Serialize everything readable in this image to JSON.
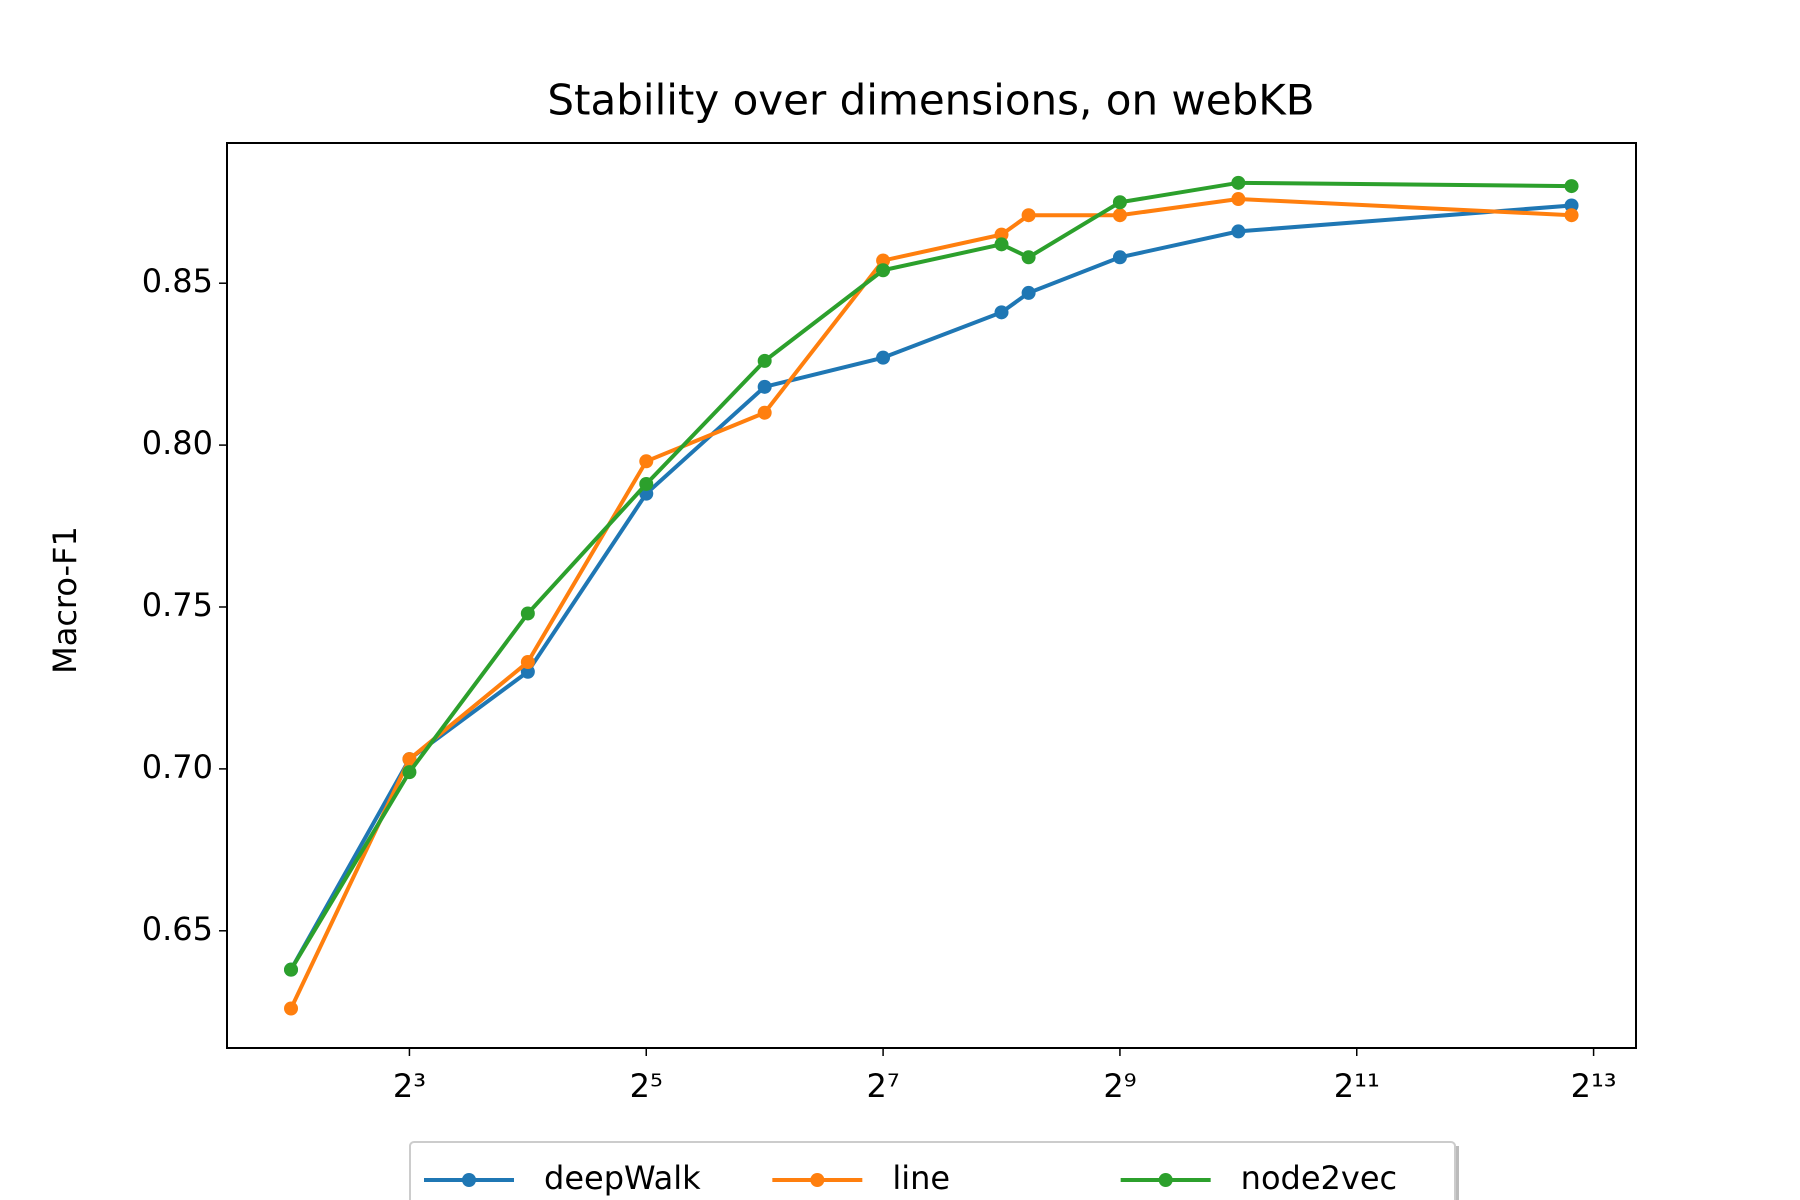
{
  "chart_data": {
    "type": "line",
    "title": "Stability over dimensions, on webKB",
    "ylabel": "Macro-F1",
    "x": [
      4,
      8,
      16,
      32,
      64,
      128,
      256,
      300,
      512,
      1024,
      7200
    ],
    "xscale": "log",
    "xlog_base": 2,
    "xlim": [
      2.75,
      10500
    ],
    "xticks": [
      {
        "value": 8,
        "label": "2³"
      },
      {
        "value": 32,
        "label": "2⁵"
      },
      {
        "value": 128,
        "label": "2⁷"
      },
      {
        "value": 512,
        "label": "2⁹"
      },
      {
        "value": 2048,
        "label": "2¹¹"
      },
      {
        "value": 8192,
        "label": "2¹³"
      }
    ],
    "ylim": [
      0.6138,
      0.8933
    ],
    "yticks": [
      {
        "value": 0.65,
        "label": "0.65"
      },
      {
        "value": 0.7,
        "label": "0.70"
      },
      {
        "value": 0.75,
        "label": "0.75"
      },
      {
        "value": 0.8,
        "label": "0.80"
      },
      {
        "value": 0.85,
        "label": "0.85"
      }
    ],
    "grid": false,
    "legend": "bottom",
    "series": [
      {
        "name": "deepWalk",
        "color": "#1f77b4",
        "values": [
          0.638,
          0.703,
          0.73,
          0.785,
          0.818,
          0.827,
          0.841,
          0.847,
          0.858,
          0.866,
          0.874
        ]
      },
      {
        "name": "line",
        "color": "#ff7f0e",
        "values": [
          0.626,
          0.703,
          0.733,
          0.795,
          0.81,
          0.857,
          0.865,
          0.871,
          0.871,
          0.876,
          0.871
        ]
      },
      {
        "name": "node2vec",
        "color": "#2ca02c",
        "values": [
          0.638,
          0.699,
          0.748,
          0.788,
          0.826,
          0.854,
          0.862,
          0.858,
          0.875,
          0.881,
          0.88
        ]
      }
    ]
  }
}
